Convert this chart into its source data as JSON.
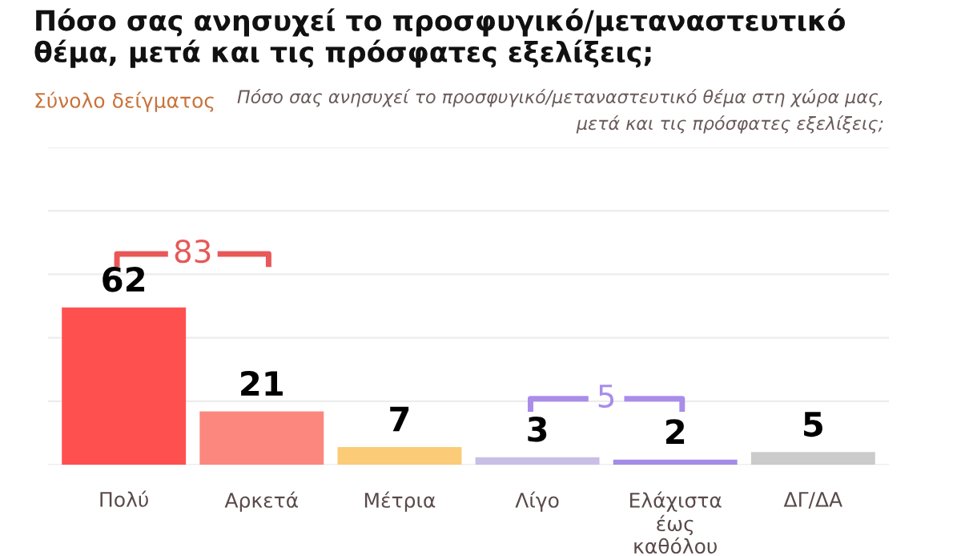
{
  "chart_data": {
    "type": "bar",
    "title": "Πόσο σας ανησυχεί το προσφυγικό/μεταναστευτικό\nθέμα, μετά και τις πρόσφατες εξελίξεις;",
    "subtitle": "Σύνολο δείγματος",
    "annotations": [
      "Πόσο σας ανησυχεί το προσφυγικό/μεταναστευτικό θέμα στη χώρα μας,\nμετά και τις πρόσφατες εξελίξεις;",
      "83",
      "5"
    ],
    "categories": [
      "Πολύ",
      "Αρκετά",
      "Μέτρια",
      "Λίγο",
      "Ελάχιστα\nέως\nκαθόλου",
      "ΔΓ/ΔΑ"
    ],
    "values": [
      62,
      21,
      7,
      3,
      2,
      5
    ],
    "colors": [
      "#ff5050",
      "#fb877e",
      "#fccb78",
      "#c9bfe6",
      "#a48be6",
      "#cbcbcb"
    ],
    "data_labels": true,
    "ylim": [
      0,
      125
    ],
    "yticks": [
      {
        "value": 0,
        "label": null
      },
      {
        "value": 25,
        "label": null
      },
      {
        "value": 50,
        "label": null
      },
      {
        "value": 75,
        "label": null
      },
      {
        "value": 100,
        "label": null
      },
      {
        "value": 125,
        "label": null
      }
    ],
    "tick_labels": "x",
    "grid": "y"
  }
}
